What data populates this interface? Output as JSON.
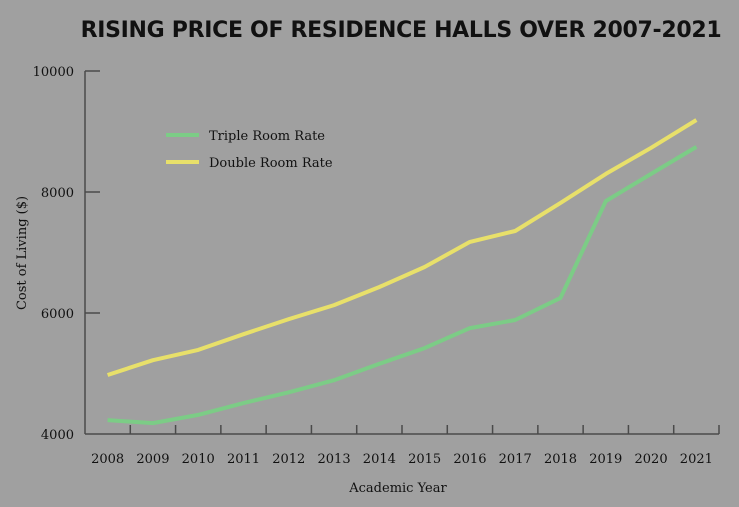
{
  "chart_data": {
    "type": "line",
    "title": "RISING PRICE OF RESIDENCE HALLS OVER 2007-2021",
    "xlabel": "Academic Year",
    "ylabel": "Cost of Living ($)",
    "categories": [
      "2008",
      "2009",
      "2010",
      "2011",
      "2012",
      "2013",
      "2014",
      "2015",
      "2016",
      "2017",
      "2018",
      "2019",
      "2020",
      "2021"
    ],
    "yticks": [
      4000,
      6000,
      8000,
      10000
    ],
    "ytick_labels": [
      "4000",
      "6000",
      "8000",
      "10000"
    ],
    "ylim": [
      4000,
      10000
    ],
    "grid": false,
    "legend_position": "top-left",
    "series": [
      {
        "name": "Triple Room Rate",
        "color": "#7ccc86",
        "values": [
          4230,
          4180,
          4315,
          4510,
          4690,
          4890,
          5160,
          5420,
          5750,
          5885,
          6250,
          7850,
          8300,
          8745
        ]
      },
      {
        "name": "Double Room Rate",
        "color": "#e8e06a",
        "values": [
          4975,
          5220,
          5390,
          5650,
          5900,
          6130,
          6430,
          6760,
          7175,
          7355,
          7820,
          8300,
          8730,
          9190
        ]
      }
    ]
  }
}
